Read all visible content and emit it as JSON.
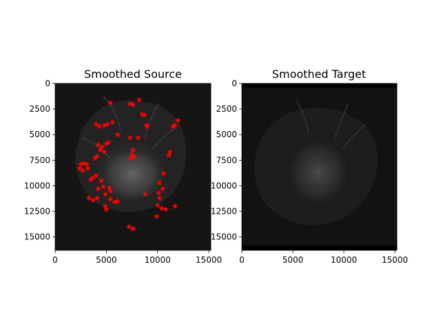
{
  "chart_data": [
    {
      "type": "scatter",
      "title": "Smoothed Source",
      "image_background": "grayscale tissue section",
      "xlim": [
        0,
        15200
      ],
      "ylim": [
        16300,
        0
      ],
      "x_ticks": [
        0,
        5000,
        10000,
        15000
      ],
      "y_ticks": [
        0,
        2500,
        5000,
        7500,
        10000,
        12500,
        15000
      ],
      "x_tick_labels": [
        "0",
        "5000",
        "10000",
        "15000"
      ],
      "y_tick_labels": [
        "0",
        "2500",
        "5000",
        "7500",
        "10000",
        "12500",
        "15000"
      ],
      "marker": "star",
      "marker_color": "#ff0000",
      "points": [
        [
          5400,
          1900
        ],
        [
          7300,
          2000
        ],
        [
          7600,
          2100
        ],
        [
          8200,
          1600
        ],
        [
          8500,
          3000
        ],
        [
          8700,
          3100
        ],
        [
          8900,
          4100
        ],
        [
          9000,
          4200
        ],
        [
          12000,
          3600
        ],
        [
          11700,
          4100
        ],
        [
          11500,
          4200
        ],
        [
          4000,
          4000
        ],
        [
          4300,
          4200
        ],
        [
          4800,
          4100
        ],
        [
          5100,
          4000
        ],
        [
          5600,
          3800
        ],
        [
          6100,
          5000
        ],
        [
          7300,
          5300
        ],
        [
          8100,
          5300
        ],
        [
          4200,
          6000
        ],
        [
          4600,
          6200
        ],
        [
          5000,
          5900
        ],
        [
          4400,
          6500
        ],
        [
          4800,
          6700
        ],
        [
          4100,
          7100
        ],
        [
          3900,
          7300
        ],
        [
          5200,
          5800
        ],
        [
          7600,
          6500
        ],
        [
          7500,
          7000
        ],
        [
          7400,
          7300
        ],
        [
          7700,
          7200
        ],
        [
          2500,
          7900
        ],
        [
          2800,
          7800
        ],
        [
          3100,
          7900
        ],
        [
          2400,
          8300
        ],
        [
          2700,
          8500
        ],
        [
          3200,
          8300
        ],
        [
          11200,
          6700
        ],
        [
          11100,
          7000
        ],
        [
          10600,
          8800
        ],
        [
          10200,
          9700
        ],
        [
          3700,
          9200
        ],
        [
          4000,
          9000
        ],
        [
          3500,
          9400
        ],
        [
          4500,
          9500
        ],
        [
          4200,
          10300
        ],
        [
          4700,
          10100
        ],
        [
          5300,
          10200
        ],
        [
          5400,
          10500
        ],
        [
          4900,
          10800
        ],
        [
          3300,
          11200
        ],
        [
          3700,
          11400
        ],
        [
          4100,
          11200
        ],
        [
          5400,
          11300
        ],
        [
          5800,
          11600
        ],
        [
          6100,
          11500
        ],
        [
          4900,
          12000
        ],
        [
          5000,
          12300
        ],
        [
          10500,
          10300
        ],
        [
          10100,
          10700
        ],
        [
          10200,
          11200
        ],
        [
          10000,
          11900
        ],
        [
          10400,
          12200
        ],
        [
          10800,
          12300
        ],
        [
          11700,
          12000
        ],
        [
          8800,
          10800
        ],
        [
          9900,
          13000
        ],
        [
          7200,
          14000
        ],
        [
          7600,
          14200
        ]
      ]
    },
    {
      "type": "image",
      "title": "Smoothed Target",
      "image_background": "grayscale tissue section",
      "xlim": [
        0,
        15200
      ],
      "ylim": [
        16300,
        0
      ],
      "x_ticks": [
        0,
        5000,
        10000,
        15000
      ],
      "y_ticks": [
        0,
        2500,
        5000,
        7500,
        10000,
        12500,
        15000
      ],
      "x_tick_labels": [
        "0",
        "5000",
        "10000",
        "15000"
      ],
      "y_tick_labels": [
        "0",
        "2500",
        "5000",
        "7500",
        "10000",
        "12500",
        "15000"
      ]
    }
  ]
}
